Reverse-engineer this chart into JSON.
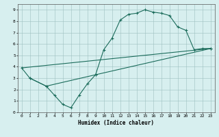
{
  "title": "",
  "xlabel": "Humidex (Indice chaleur)",
  "ylabel": "",
  "bg_color": "#d7efef",
  "line_color": "#1a6b5a",
  "xlim": [
    -0.5,
    23.5
  ],
  "ylim": [
    0,
    9.5
  ],
  "xticks": [
    0,
    1,
    2,
    3,
    4,
    5,
    6,
    7,
    8,
    9,
    10,
    11,
    12,
    13,
    14,
    15,
    16,
    17,
    18,
    19,
    20,
    21,
    22,
    23
  ],
  "yticks": [
    0,
    1,
    2,
    3,
    4,
    5,
    6,
    7,
    8,
    9
  ],
  "line1": {
    "x": [
      0,
      1,
      3,
      4,
      5,
      6,
      7,
      8,
      9,
      10,
      11,
      12,
      13,
      14,
      15,
      16,
      17,
      18,
      19,
      20,
      21,
      22,
      23
    ],
    "y": [
      3.9,
      3.0,
      2.3,
      1.5,
      0.7,
      0.4,
      1.5,
      2.5,
      3.3,
      5.5,
      6.5,
      8.1,
      8.6,
      8.7,
      9.0,
      8.8,
      8.7,
      8.5,
      7.5,
      7.2,
      5.5,
      5.6,
      5.6
    ]
  },
  "line2": {
    "x": [
      1,
      3,
      9,
      23
    ],
    "y": [
      3.0,
      2.3,
      3.3,
      5.6
    ]
  },
  "line3": {
    "x": [
      0,
      23
    ],
    "y": [
      3.9,
      5.6
    ]
  }
}
